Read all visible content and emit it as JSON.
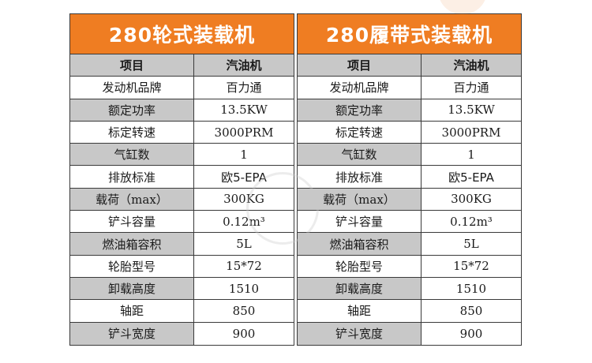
{
  "tables": [
    {
      "title": "280轮式装载机",
      "header": [
        "项目",
        "汽油机"
      ],
      "rows": [
        [
          "发动机品牌",
          "百力通"
        ],
        [
          "额定功率",
          "13.5KW"
        ],
        [
          "标定转速",
          "3000PRM"
        ],
        [
          "气缸数",
          "1"
        ],
        [
          "排放标准",
          "欧5-EPA"
        ],
        [
          "载荷（max）",
          "300KG"
        ],
        [
          "铲斗容量",
          "0.12m³"
        ],
        [
          "燃油箱容积",
          "5L"
        ],
        [
          "轮胎型号",
          "15*72"
        ],
        [
          "卸载高度",
          "1510"
        ],
        [
          "轴距",
          "850"
        ],
        [
          "铲斗宽度",
          "900"
        ]
      ]
    },
    {
      "title": "280履带式装载机",
      "header": [
        "项目",
        "汽油机"
      ],
      "rows": [
        [
          "发动机品牌",
          "百力通"
        ],
        [
          "额定功率",
          "13.5KW"
        ],
        [
          "标定转速",
          "3000PRM"
        ],
        [
          "气缸数",
          "1"
        ],
        [
          "排放标准",
          "欧5-EPA"
        ],
        [
          "载荷（max）",
          "300KG"
        ],
        [
          "铲斗容量",
          "0.12m³"
        ],
        [
          "燃油箱容积",
          "5L"
        ],
        [
          "轮胎型号",
          "15*72"
        ],
        [
          "卸载高度",
          "1510"
        ],
        [
          "轴距",
          "850"
        ],
        [
          "铲斗宽度",
          "900"
        ]
      ]
    }
  ],
  "colors": {
    "title_bg": "#ef7d22",
    "title_text": "#ffffff",
    "shaded_row": "#c8c8c8",
    "border": "#3a3a3a"
  }
}
